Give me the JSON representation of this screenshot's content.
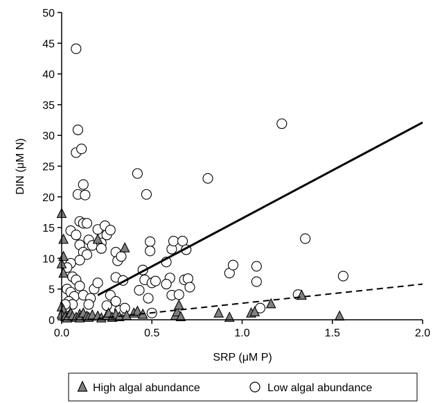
{
  "chart_data": {
    "type": "scatter",
    "xlabel": "SRP (μM P)",
    "ylabel": "DIN (μM N)",
    "xlim": [
      0,
      2.0
    ],
    "ylim": [
      0,
      50
    ],
    "xticks": [
      "0.0",
      "0.5",
      "1.0",
      "1.5",
      "2.0"
    ],
    "yticks": [
      "0",
      "5",
      "10",
      "15",
      "20",
      "25",
      "30",
      "35",
      "40",
      "45",
      "50"
    ],
    "grid": false,
    "legend_position": "bottom",
    "series": [
      {
        "name": "High algal abundance",
        "marker": "triangle",
        "color": "#808080",
        "points": [
          [
            0.0,
            17.2
          ],
          [
            0.01,
            13.0
          ],
          [
            0.01,
            10.2
          ],
          [
            0.0,
            9.0
          ],
          [
            0.01,
            7.5
          ],
          [
            0.0,
            2.0
          ],
          [
            0.01,
            1.5
          ],
          [
            0.0,
            0.8
          ],
          [
            0.02,
            0.4
          ],
          [
            0.03,
            0.2
          ],
          [
            0.05,
            1.0
          ],
          [
            0.06,
            0.5
          ],
          [
            0.08,
            0.3
          ],
          [
            0.1,
            0.8
          ],
          [
            0.1,
            0.2
          ],
          [
            0.12,
            1.0
          ],
          [
            0.14,
            0.5
          ],
          [
            0.15,
            0.3
          ],
          [
            0.17,
            0.7
          ],
          [
            0.2,
            13.0
          ],
          [
            0.2,
            0.5
          ],
          [
            0.22,
            0.2
          ],
          [
            0.25,
            0.6
          ],
          [
            0.26,
            1.0
          ],
          [
            0.28,
            0.3
          ],
          [
            0.3,
            0.8
          ],
          [
            0.32,
            0.4
          ],
          [
            0.35,
            11.6
          ],
          [
            0.36,
            0.6
          ],
          [
            0.4,
            1.0
          ],
          [
            0.42,
            1.3
          ],
          [
            0.45,
            0.8
          ],
          [
            0.63,
            0.6
          ],
          [
            0.64,
            1.2
          ],
          [
            0.65,
            2.3
          ],
          [
            0.66,
            0.4
          ],
          [
            0.87,
            1.0
          ],
          [
            0.93,
            0.3
          ],
          [
            1.05,
            1.0
          ],
          [
            1.07,
            1.2
          ],
          [
            1.16,
            2.5
          ],
          [
            1.33,
            3.9
          ],
          [
            1.54,
            0.5
          ]
        ]
      },
      {
        "name": "Low algal abundance",
        "marker": "circle",
        "color": "#ffffff",
        "points": [
          [
            0.08,
            44.1
          ],
          [
            0.09,
            30.9
          ],
          [
            0.08,
            27.2
          ],
          [
            0.11,
            27.8
          ],
          [
            0.12,
            22.0
          ],
          [
            0.09,
            20.4
          ],
          [
            0.13,
            20.3
          ],
          [
            0.1,
            16.0
          ],
          [
            0.12,
            15.7
          ],
          [
            0.14,
            15.7
          ],
          [
            0.05,
            14.5
          ],
          [
            0.08,
            13.8
          ],
          [
            0.1,
            12.2
          ],
          [
            0.12,
            11.0
          ],
          [
            0.15,
            13.0
          ],
          [
            0.17,
            12.1
          ],
          [
            0.14,
            10.6
          ],
          [
            0.1,
            9.7
          ],
          [
            0.05,
            9.2
          ],
          [
            0.03,
            8.5
          ],
          [
            0.06,
            7.0
          ],
          [
            0.08,
            6.5
          ],
          [
            0.1,
            5.5
          ],
          [
            0.03,
            5.0
          ],
          [
            0.05,
            4.5
          ],
          [
            0.07,
            3.8
          ],
          [
            0.04,
            3.0
          ],
          [
            0.06,
            2.5
          ],
          [
            0.02,
            2.0
          ],
          [
            0.02,
            2.5
          ],
          [
            0.12,
            4.0
          ],
          [
            0.16,
            3.5
          ],
          [
            0.18,
            5.0
          ],
          [
            0.2,
            6.0
          ],
          [
            0.15,
            2.5
          ],
          [
            0.2,
            14.7
          ],
          [
            0.22,
            12.5
          ],
          [
            0.22,
            11.6
          ],
          [
            0.24,
            15.3
          ],
          [
            0.25,
            13.8
          ],
          [
            0.27,
            14.6
          ],
          [
            0.3,
            11.0
          ],
          [
            0.3,
            6.9
          ],
          [
            0.31,
            9.6
          ],
          [
            0.33,
            10.3
          ],
          [
            0.34,
            6.4
          ],
          [
            0.25,
            2.3
          ],
          [
            0.27,
            4.0
          ],
          [
            0.3,
            3.0
          ],
          [
            0.32,
            1.5
          ],
          [
            0.35,
            1.9
          ],
          [
            0.42,
            23.8
          ],
          [
            0.47,
            20.4
          ],
          [
            0.49,
            12.7
          ],
          [
            0.49,
            11.2
          ],
          [
            0.45,
            8.1
          ],
          [
            0.46,
            6.5
          ],
          [
            0.5,
            6.0
          ],
          [
            0.52,
            6.3
          ],
          [
            0.43,
            4.8
          ],
          [
            0.48,
            3.5
          ],
          [
            0.5,
            1.1
          ],
          [
            0.58,
            9.4
          ],
          [
            0.61,
            11.5
          ],
          [
            0.62,
            12.8
          ],
          [
            0.6,
            6.8
          ],
          [
            0.58,
            5.8
          ],
          [
            0.61,
            4.0
          ],
          [
            0.65,
            4.1
          ],
          [
            0.67,
            12.8
          ],
          [
            0.69,
            11.4
          ],
          [
            0.68,
            6.5
          ],
          [
            0.7,
            6.7
          ],
          [
            0.71,
            5.3
          ],
          [
            0.81,
            23.0
          ],
          [
            0.93,
            7.6
          ],
          [
            0.95,
            8.9
          ],
          [
            1.08,
            8.7
          ],
          [
            1.08,
            6.2
          ],
          [
            1.1,
            1.9
          ],
          [
            1.22,
            31.9
          ],
          [
            1.31,
            4.1
          ],
          [
            1.35,
            13.2
          ],
          [
            1.56,
            7.1
          ]
        ]
      }
    ],
    "lines": [
      {
        "style": "solid",
        "x": [
          0.2,
          2.0
        ],
        "y": [
          4.0,
          32.1
        ]
      },
      {
        "style": "dashed",
        "x": [
          0.2,
          2.0
        ],
        "y": [
          0.2,
          5.8
        ]
      }
    ]
  }
}
